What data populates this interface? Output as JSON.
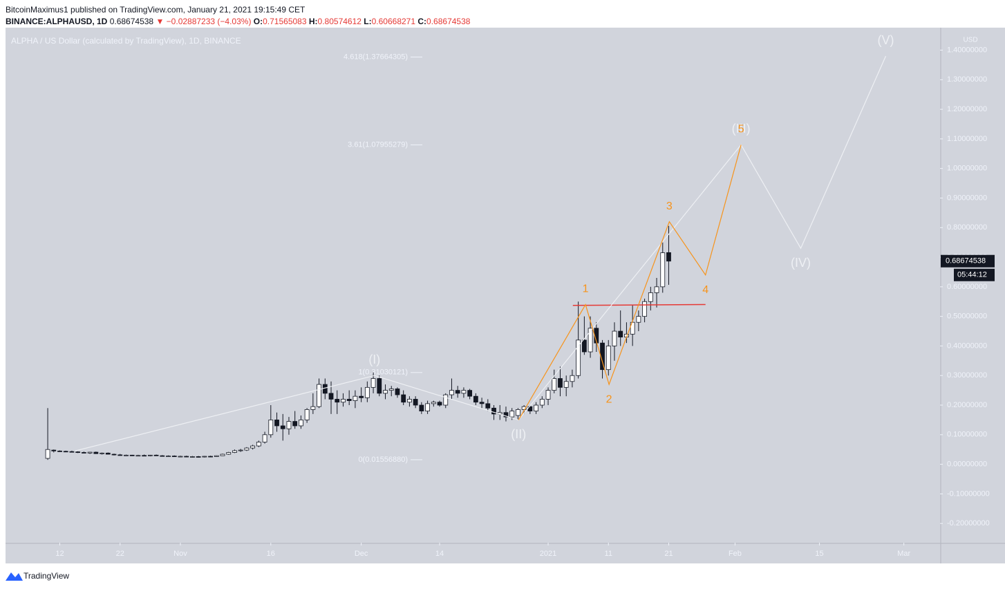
{
  "header": {
    "publisher": "BitcoinMaximus1 published on TradingView.com, January 21, 2021 19:15:49 CET",
    "symbol": "BINANCE:ALPHAUSD, 1D",
    "last": "0.68674538",
    "arrow": "▼",
    "change": "−0.02887233 (−4.03%)",
    "o_label": "O:",
    "o": "0.71565083",
    "h_label": "H:",
    "h": "0.80574612",
    "l_label": "L:",
    "l": "0.60668271",
    "c_label": "C:",
    "c": "0.68674538"
  },
  "footer": {
    "brand": "TradingView"
  },
  "chart_data": {
    "type": "candlestick",
    "title": "ALPHA / US Dollar (calculated by TradingView), 1D, BINANCE",
    "y_axis_unit": "USD",
    "up_color": "#ffffff",
    "down_color": "#131722",
    "wick_color": "#131722",
    "x": [
      0,
      1,
      2,
      3,
      4,
      5,
      6,
      7,
      8,
      9,
      10,
      11,
      12,
      13,
      14,
      15,
      16,
      17,
      18,
      19,
      20,
      21,
      22,
      23,
      24,
      25,
      26,
      27,
      28,
      29,
      30,
      31,
      32,
      33,
      34,
      35,
      36,
      37,
      38,
      39,
      40,
      41,
      42,
      43,
      44,
      45,
      46,
      47,
      48,
      49,
      50,
      51,
      52,
      53,
      54,
      55,
      56,
      57,
      58,
      59,
      60,
      61,
      62,
      63,
      64,
      65,
      66,
      67,
      68,
      69,
      70,
      71,
      72,
      73,
      74,
      75,
      76,
      77,
      78,
      79,
      80,
      81,
      82,
      83,
      84,
      85,
      86,
      87,
      88,
      89,
      90,
      91,
      92,
      93,
      94,
      95,
      96,
      97,
      98,
      99,
      100,
      101,
      102,
      103
    ],
    "open": [
      0.02,
      0.048,
      0.045,
      0.044,
      0.043,
      0.042,
      0.04,
      0.038,
      0.041,
      0.036,
      0.038,
      0.034,
      0.032,
      0.03,
      0.031,
      0.029,
      0.03,
      0.029,
      0.031,
      0.029,
      0.027,
      0.028,
      0.026,
      0.027,
      0.025,
      0.026,
      0.025,
      0.027,
      0.026,
      0.029,
      0.034,
      0.04,
      0.046,
      0.048,
      0.055,
      0.062,
      0.075,
      0.1,
      0.15,
      0.13,
      0.12,
      0.145,
      0.13,
      0.15,
      0.185,
      0.195,
      0.27,
      0.24,
      0.22,
      0.21,
      0.22,
      0.215,
      0.23,
      0.225,
      0.26,
      0.29,
      0.24,
      0.25,
      0.255,
      0.235,
      0.21,
      0.22,
      0.2,
      0.18,
      0.205,
      0.21,
      0.2,
      0.235,
      0.25,
      0.24,
      0.25,
      0.23,
      0.21,
      0.205,
      0.19,
      0.17,
      0.175,
      0.16,
      0.165,
      0.185,
      0.195,
      0.18,
      0.2,
      0.22,
      0.25,
      0.29,
      0.26,
      0.28,
      0.3,
      0.42,
      0.38,
      0.46,
      0.41,
      0.32,
      0.4,
      0.45,
      0.43,
      0.44,
      0.48,
      0.5,
      0.55,
      0.58,
      0.6,
      0.71565083
    ],
    "high": [
      0.19,
      0.05,
      0.047,
      0.046,
      0.046,
      0.044,
      0.043,
      0.042,
      0.043,
      0.04,
      0.04,
      0.036,
      0.035,
      0.033,
      0.032,
      0.032,
      0.033,
      0.032,
      0.033,
      0.031,
      0.03,
      0.03,
      0.029,
      0.029,
      0.028,
      0.028,
      0.028,
      0.029,
      0.03,
      0.036,
      0.042,
      0.05,
      0.052,
      0.058,
      0.066,
      0.08,
      0.11,
      0.2,
      0.175,
      0.17,
      0.16,
      0.18,
      0.165,
      0.19,
      0.24,
      0.29,
      0.29,
      0.28,
      0.25,
      0.24,
      0.25,
      0.25,
      0.26,
      0.28,
      0.31,
      0.3,
      0.27,
      0.265,
      0.26,
      0.25,
      0.23,
      0.23,
      0.21,
      0.215,
      0.215,
      0.215,
      0.24,
      0.29,
      0.265,
      0.26,
      0.255,
      0.24,
      0.225,
      0.22,
      0.2,
      0.2,
      0.195,
      0.19,
      0.19,
      0.2,
      0.2,
      0.21,
      0.23,
      0.26,
      0.32,
      0.33,
      0.3,
      0.32,
      0.55,
      0.5,
      0.5,
      0.48,
      0.42,
      0.42,
      0.48,
      0.52,
      0.48,
      0.54,
      0.52,
      0.56,
      0.6,
      0.63,
      0.75,
      0.80574612
    ],
    "low": [
      0.015,
      0.04,
      0.042,
      0.041,
      0.04,
      0.038,
      0.037,
      0.035,
      0.035,
      0.033,
      0.033,
      0.03,
      0.029,
      0.028,
      0.028,
      0.027,
      0.028,
      0.027,
      0.028,
      0.026,
      0.025,
      0.025,
      0.024,
      0.024,
      0.023,
      0.023,
      0.023,
      0.024,
      0.025,
      0.028,
      0.032,
      0.038,
      0.042,
      0.045,
      0.05,
      0.058,
      0.07,
      0.09,
      0.11,
      0.08,
      0.1,
      0.12,
      0.12,
      0.14,
      0.17,
      0.19,
      0.22,
      0.17,
      0.17,
      0.195,
      0.2,
      0.19,
      0.21,
      0.21,
      0.24,
      0.23,
      0.22,
      0.23,
      0.225,
      0.2,
      0.195,
      0.19,
      0.17,
      0.17,
      0.195,
      0.195,
      0.19,
      0.22,
      0.225,
      0.225,
      0.22,
      0.2,
      0.19,
      0.18,
      0.15,
      0.15,
      0.145,
      0.15,
      0.15,
      0.17,
      0.17,
      0.17,
      0.19,
      0.2,
      0.24,
      0.23,
      0.23,
      0.26,
      0.29,
      0.37,
      0.36,
      0.38,
      0.29,
      0.3,
      0.35,
      0.4,
      0.41,
      0.4,
      0.45,
      0.48,
      0.52,
      0.53,
      0.58,
      0.60668271
    ],
    "close": [
      0.05,
      0.045,
      0.044,
      0.043,
      0.042,
      0.04,
      0.038,
      0.041,
      0.036,
      0.038,
      0.034,
      0.032,
      0.03,
      0.031,
      0.029,
      0.03,
      0.029,
      0.031,
      0.029,
      0.027,
      0.028,
      0.026,
      0.027,
      0.025,
      0.026,
      0.025,
      0.027,
      0.026,
      0.029,
      0.034,
      0.04,
      0.046,
      0.048,
      0.055,
      0.062,
      0.075,
      0.1,
      0.15,
      0.13,
      0.12,
      0.145,
      0.13,
      0.15,
      0.185,
      0.195,
      0.27,
      0.24,
      0.22,
      0.21,
      0.22,
      0.215,
      0.23,
      0.225,
      0.26,
      0.29,
      0.24,
      0.25,
      0.255,
      0.235,
      0.21,
      0.22,
      0.2,
      0.18,
      0.205,
      0.21,
      0.2,
      0.235,
      0.25,
      0.24,
      0.25,
      0.23,
      0.21,
      0.205,
      0.19,
      0.17,
      0.175,
      0.16,
      0.18,
      0.185,
      0.195,
      0.18,
      0.2,
      0.22,
      0.25,
      0.29,
      0.26,
      0.28,
      0.3,
      0.42,
      0.38,
      0.46,
      0.41,
      0.32,
      0.4,
      0.45,
      0.43,
      0.44,
      0.48,
      0.5,
      0.55,
      0.58,
      0.6,
      0.715,
      0.68674538
    ],
    "xlim": [
      -7,
      148
    ],
    "xticks": [
      {
        "value": 2,
        "label": "12"
      },
      {
        "value": 12,
        "label": "22"
      },
      {
        "value": 22,
        "label": "Nov"
      },
      {
        "value": 37,
        "label": "16"
      },
      {
        "value": 52,
        "label": "Dec"
      },
      {
        "value": 65,
        "label": "14"
      },
      {
        "value": 83,
        "label": "2021"
      },
      {
        "value": 93,
        "label": "11"
      },
      {
        "value": 103,
        "label": "21"
      },
      {
        "value": 114,
        "label": "Feb"
      },
      {
        "value": 128,
        "label": "15"
      },
      {
        "value": 142,
        "label": "Mar"
      }
    ],
    "ylim": [
      -0.265,
      1.476
    ],
    "yticks": [
      {
        "value": 1.4,
        "label": "1.40000000"
      },
      {
        "value": 1.3,
        "label": "1.30000000"
      },
      {
        "value": 1.2,
        "label": "1.20000000"
      },
      {
        "value": 1.1,
        "label": "1.10000000"
      },
      {
        "value": 1,
        "label": "1.00000000"
      },
      {
        "value": 0.9,
        "label": "0.90000000"
      },
      {
        "value": 0.8,
        "label": "0.80000000"
      },
      {
        "value": 0.7,
        "label": "0.70000000"
      },
      {
        "value": 0.6,
        "label": "0.60000000"
      },
      {
        "value": 0.5,
        "label": "0.50000000"
      },
      {
        "value": 0.4,
        "label": "0.40000000"
      },
      {
        "value": 0.3,
        "label": "0.30000000"
      },
      {
        "value": 0.2,
        "label": "0.20000000"
      },
      {
        "value": 0.1,
        "label": "0.10000000"
      },
      {
        "value": 0,
        "label": "0.00000000"
      },
      {
        "value": -0.1,
        "label": "-0.10000000"
      },
      {
        "value": -0.2,
        "label": "-0.20000000"
      }
    ],
    "last_price": {
      "value": 0.68674538,
      "label": "0.68674538",
      "countdown": "05:44:12"
    },
    "fib_levels": [
      {
        "value": 1.37664305,
        "label": "4.618(1.37664305)"
      },
      {
        "value": 1.07955279,
        "label": "3.61(1.07955279)"
      },
      {
        "value": 0.31030121,
        "label": "1(0.31030121)"
      },
      {
        "value": 0.0155688,
        "label": "0(0.01556880)"
      }
    ],
    "waves": [
      {
        "name": "primary",
        "color": "#eef0f4",
        "x": [
          4.5,
          54.2,
          78.1,
          115,
          124.9,
          139
        ],
        "values": [
          0.045,
          0.3,
          0.15,
          1.08,
          0.73,
          1.38
        ],
        "labels": [
          null,
          "(I)",
          "(II)",
          "(III)",
          "(IV)",
          "(V)"
        ]
      },
      {
        "name": "minor",
        "color": "#f7931a",
        "x": [
          78.1,
          89.2,
          93.1,
          103.1,
          109.1,
          115
        ],
        "values": [
          0.15,
          0.54,
          0.27,
          0.82,
          0.64,
          1.08
        ],
        "labels": [
          null,
          "1",
          "2",
          "3",
          "4",
          "5"
        ]
      }
    ],
    "support": {
      "color": "#e53935",
      "x": [
        87.1,
        109.1
      ],
      "values": [
        0.537,
        0.54
      ]
    }
  }
}
